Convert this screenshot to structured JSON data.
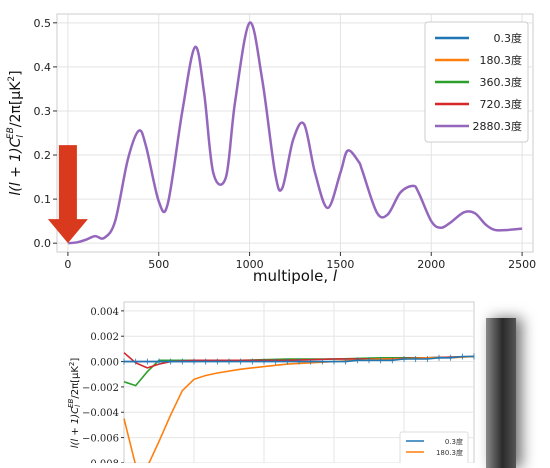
{
  "chart_data": [
    {
      "type": "line",
      "title": "",
      "xlabel": "multipole, l",
      "ylabel": "l(l + 1)C_l^EB/2π[μK²]",
      "ylabel_parts": {
        "pre": "l(l + 1)C",
        "sub": "l",
        "sup": "EB",
        "post": "/2π[μK",
        "sq": "2",
        "end": "]"
      },
      "xlim": [
        -60,
        2560
      ],
      "ylim": [
        -0.02,
        0.52
      ],
      "xticks": [
        0,
        500,
        1000,
        1500,
        2000,
        2500
      ],
      "xtick_labels": [
        "0",
        "500",
        "1000",
        "1500",
        "2000",
        "2500"
      ],
      "yticks": [
        0.0,
        0.1,
        0.2,
        0.3,
        0.4,
        0.5
      ],
      "ytick_labels": [
        "0.0",
        "0.1",
        "0.2",
        "0.3",
        "0.4",
        "0.5"
      ],
      "grid": true,
      "legend_position": "top-right",
      "series": [
        {
          "name": "0.3度",
          "color": "#1f77b4"
        },
        {
          "name": "180.3度",
          "color": "#ff7f0e"
        },
        {
          "name": "360.3度",
          "color": "#2ca02c"
        },
        {
          "name": "720.3度",
          "color": "#d62728"
        },
        {
          "name": "2880.3度",
          "color": "#9467bd",
          "x": [
            2,
            50,
            100,
            150,
            200,
            260,
            330,
            390,
            430,
            500,
            550,
            630,
            700,
            750,
            800,
            870,
            920,
            1000,
            1070,
            1140,
            1180,
            1240,
            1300,
            1360,
            1430,
            1500,
            1540,
            1600,
            1620,
            1700,
            1760,
            1830,
            1900,
            1930,
            2000,
            2050,
            2100,
            2180,
            2240,
            2300,
            2350,
            2420,
            2500
          ],
          "y": [
            0.0,
            0.002,
            0.008,
            0.016,
            0.012,
            0.05,
            0.19,
            0.255,
            0.22,
            0.095,
            0.09,
            0.3,
            0.445,
            0.34,
            0.16,
            0.15,
            0.32,
            0.5,
            0.37,
            0.16,
            0.125,
            0.235,
            0.27,
            0.16,
            0.08,
            0.16,
            0.21,
            0.185,
            0.165,
            0.07,
            0.065,
            0.115,
            0.13,
            0.115,
            0.05,
            0.035,
            0.045,
            0.07,
            0.068,
            0.042,
            0.03,
            0.03,
            0.033
          ]
        }
      ],
      "annotation": {
        "type": "arrow",
        "x": 0,
        "y": 0.0,
        "color": "#d93a1e"
      }
    },
    {
      "type": "line",
      "title": "",
      "xlabel": "",
      "ylabel": "l(l + 1)C_l^EB/2π[μK²]",
      "ylabel_parts": {
        "pre": "l(l + 1)C",
        "sub": "l",
        "sup": "EB",
        "post": "/2π[μK",
        "sq": "2",
        "end": "]"
      },
      "ylim": [
        -0.0084,
        0.0047
      ],
      "xlim": [
        0,
        30
      ],
      "yticks": [
        0.004,
        0.002,
        0.0,
        -0.002,
        -0.004,
        -0.006,
        -0.008
      ],
      "ytick_labels": [
        "0.004",
        "0.002",
        "0.000",
        "−0.002",
        "−0.004",
        "−0.006",
        "−0.008"
      ],
      "grid": true,
      "legend_position": "bottom-right",
      "series": [
        {
          "name": "0.3度",
          "color": "#1f77b4",
          "x": [
            0,
            1,
            2,
            3,
            4,
            5,
            6,
            7,
            8,
            9,
            10,
            11,
            12,
            13,
            14,
            15,
            16,
            17,
            18,
            19,
            20,
            21,
            22,
            23,
            24,
            25,
            26,
            27,
            28,
            29,
            30
          ],
          "y": [
            0.0,
            0.0,
            0.0,
            0.0,
            0.0,
            0.0,
            0.0,
            0.0,
            0.0,
            0.0,
            0.0,
            0.0,
            0.0,
            0.0,
            0.0,
            0.0,
            0.0,
            0.0,
            0.0,
            0.0,
            0.0001,
            0.0001,
            0.0001,
            0.0001,
            0.0002,
            0.0002,
            0.0002,
            0.0003,
            0.0003,
            0.0004,
            0.0004
          ]
        },
        {
          "name": "180.3度",
          "color": "#ff7f0e",
          "x": [
            0,
            1,
            2,
            3,
            4,
            5,
            6,
            7,
            8,
            10,
            12,
            14,
            16,
            18,
            20,
            22,
            24,
            26,
            28,
            30
          ],
          "y": [
            -0.0045,
            -0.0082,
            -0.0083,
            -0.0063,
            -0.0042,
            -0.0023,
            -0.0014,
            -0.0011,
            -0.0009,
            -0.0006,
            -0.0004,
            -0.0002,
            -0.0001,
            0.0,
            0.0001,
            0.0002,
            0.0002,
            0.0003,
            0.0003,
            0.0004
          ]
        },
        {
          "name": "360.3度",
          "color": "#2ca02c",
          "x": [
            0,
            1,
            2,
            3,
            4,
            6,
            8,
            10,
            14,
            18,
            22,
            26,
            30
          ],
          "y": [
            -0.0016,
            -0.0019,
            -0.0008,
            0.0001,
            0.0001,
            0.0001,
            0.0001,
            0.0001,
            0.0002,
            0.0002,
            0.0003,
            0.0003,
            0.0004
          ]
        },
        {
          "name": "720.3度",
          "color": "#d62728",
          "x": [
            0,
            1,
            2,
            3,
            4,
            6,
            8,
            10,
            14,
            18,
            22,
            26,
            30
          ],
          "y": [
            0.0007,
            -0.0001,
            -0.0005,
            -0.0002,
            0.0,
            0.0001,
            0.0001,
            0.0001,
            0.0001,
            0.0002,
            0.0002,
            0.0003,
            0.0004
          ]
        },
        {
          "name": "2880.3度",
          "color": "#9467bd",
          "x": [
            0,
            2,
            4,
            6,
            8,
            10,
            14,
            18,
            22,
            26,
            30
          ],
          "y": [
            0.0,
            0.0,
            0.0,
            0.0,
            0.0001,
            0.0001,
            0.0001,
            0.0002,
            0.0002,
            0.0003,
            0.0004
          ]
        }
      ],
      "legend_visible": [
        "0.3度",
        "180.3度"
      ]
    }
  ]
}
